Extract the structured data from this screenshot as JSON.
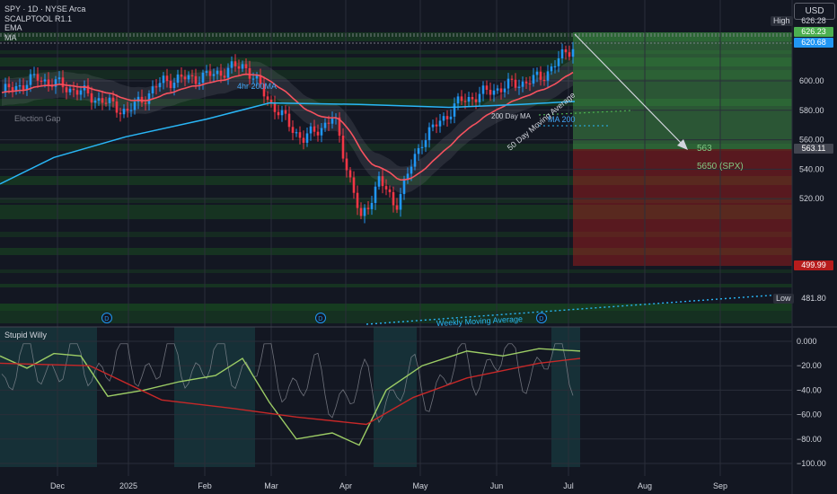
{
  "header": {
    "symbol_line": "SPY · 1D · NYSE Arca",
    "indicators": [
      "SCALPTOOL R1.1",
      "EMA",
      "MA"
    ],
    "currency": "USD"
  },
  "oscillator": {
    "title": "Stupid Willy",
    "ticks": [
      {
        "value": 0,
        "label": "0.000"
      },
      {
        "value": -20,
        "label": "−20.00"
      },
      {
        "value": -40,
        "label": "−40.00"
      },
      {
        "value": -60,
        "label": "−60.00"
      },
      {
        "value": -80,
        "label": "−80.00"
      },
      {
        "value": -100,
        "label": "−100.00"
      }
    ]
  },
  "price_labels": {
    "high_word": "High",
    "high_value": "626.28",
    "last_value": "626.23",
    "ma_value": "620.68",
    "level_563": "563.11",
    "level_499": "499.99",
    "low_word": "Low",
    "low_value": "481.80"
  },
  "annotations": {
    "target_563": "563",
    "target_spx": "5650 (SPX)",
    "ema_4h": "4hr 200MA",
    "election_gap": "Election Gap",
    "ma_200_day": "200 Day MA",
    "ma_50_day": "50 Day Moving Average",
    "ma_200": "MA 200",
    "weekly_average": "Weekly Moving Average",
    "dividend_marker": "D"
  },
  "colors": {
    "up": "#2196f3",
    "down": "#f23645",
    "ema": "#f7525f",
    "ma200": "#29b6f6",
    "target_green": "#4caf50",
    "target_red": "#b71c1c"
  },
  "chart_data": {
    "type": "candlestick",
    "symbol": "SPY",
    "interval": "1D",
    "x_ticks": [
      "Dec",
      "2025",
      "Feb",
      "Mar",
      "Apr",
      "May",
      "Jun",
      "Jul",
      "Aug",
      "Sep"
    ],
    "y_ticks": [
      520,
      540,
      560,
      580,
      600
    ],
    "ylim": [
      478,
      636
    ],
    "series_close": [
      {
        "month": "Nov 2024",
        "close": 592
      },
      {
        "month": "Dec 2024",
        "close": 602
      },
      {
        "month": "Dec 2024",
        "close": 592
      },
      {
        "month": "Jan 2025",
        "close": 579
      },
      {
        "month": "Jan 2025",
        "close": 600
      },
      {
        "month": "Feb 2025",
        "close": 603
      },
      {
        "month": "Feb 2025",
        "close": 611
      },
      {
        "month": "Mar 2025",
        "close": 583
      },
      {
        "month": "Mar 2025",
        "close": 560
      },
      {
        "month": "Mar 2025",
        "close": 575
      },
      {
        "month": "Apr 2025",
        "close": 505
      },
      {
        "month": "Apr 2025",
        "close": 533
      },
      {
        "month": "Apr 2025",
        "close": 515
      },
      {
        "month": "May 2025",
        "close": 560
      },
      {
        "month": "May 2025",
        "close": 586
      },
      {
        "month": "Jun 2025",
        "close": 595
      },
      {
        "month": "Jun 2025",
        "close": 602
      },
      {
        "month": "Jul 2025",
        "close": 626
      }
    ],
    "projection": {
      "from": 626.23,
      "to": 563
    },
    "levels": [
      626.28,
      626.23,
      620.68,
      563.11,
      499.99,
      481.8
    ]
  }
}
